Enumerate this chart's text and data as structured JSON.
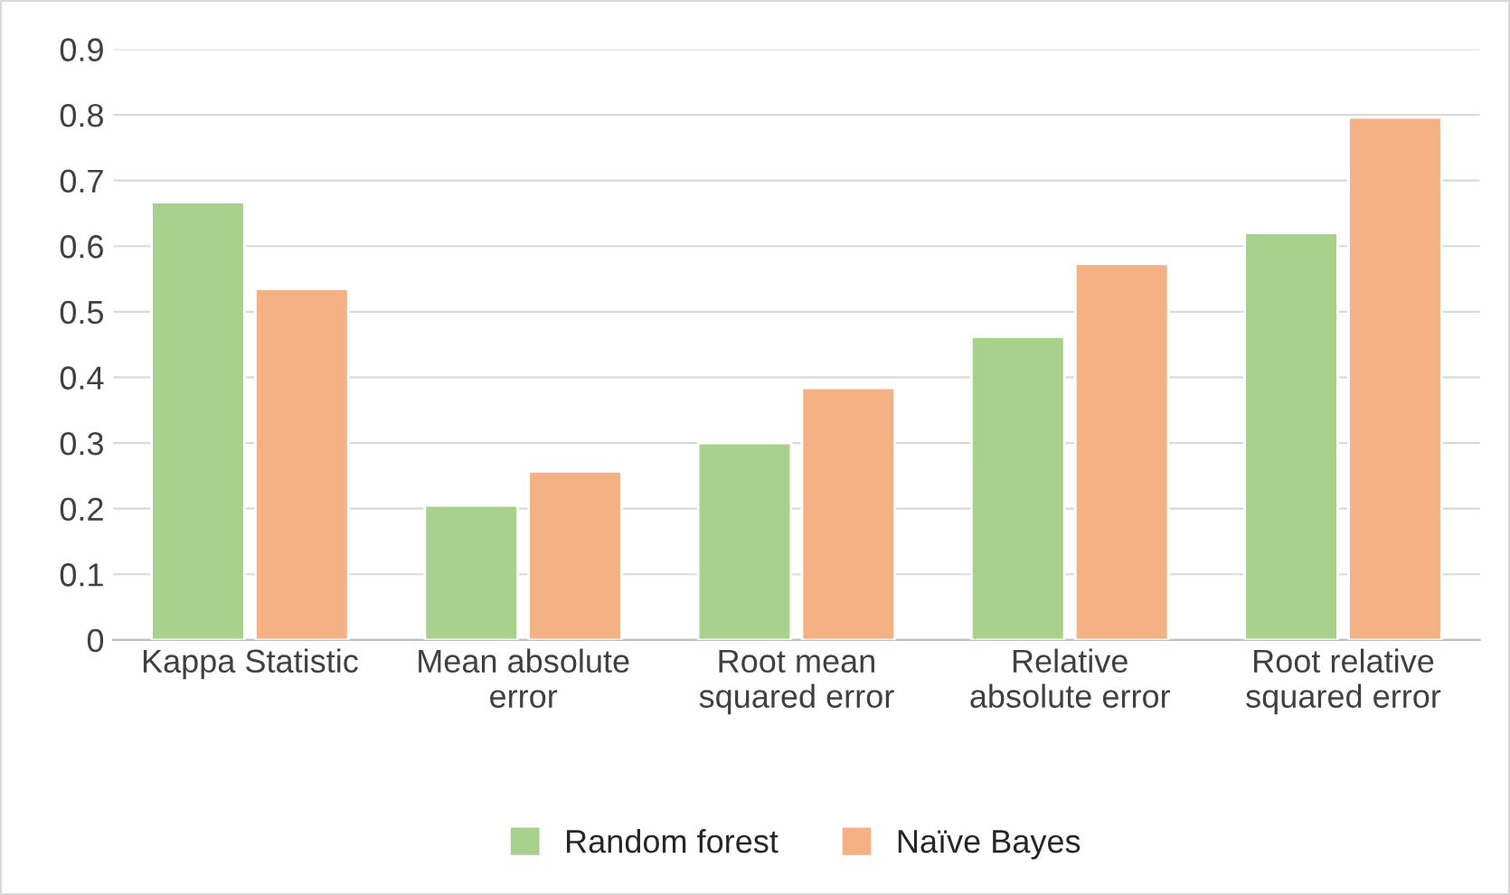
{
  "chart_data": {
    "type": "bar",
    "categories": [
      "Kappa Statistic",
      "Mean absolute\nerror",
      "Root mean\nsquared error",
      "Relative\nabsolute error",
      "Root relative\nsquared error"
    ],
    "series": [
      {
        "name": "Random forest",
        "color": "#a9d18e",
        "values": [
          0.667,
          0.205,
          0.3,
          0.462,
          0.62
        ]
      },
      {
        "name": "Naïve Bayes",
        "color": "#f4b183",
        "values": [
          0.535,
          0.257,
          0.384,
          0.573,
          0.796
        ]
      }
    ],
    "ylim": [
      0,
      0.9
    ],
    "yticks": [
      0,
      0.1,
      0.2,
      0.3,
      0.4,
      0.5,
      0.6,
      0.7,
      0.8,
      0.9
    ],
    "grid": "y",
    "legend": "bottom"
  }
}
